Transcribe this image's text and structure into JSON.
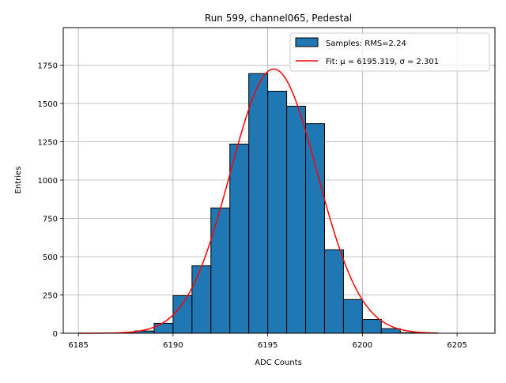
{
  "chart_data": {
    "type": "bar",
    "title": "Run 599, channel065, Pedestal",
    "xlabel": "ADC Counts",
    "ylabel": "Entries",
    "xlim": [
      6184.2,
      6207.0
    ],
    "ylim": [
      0,
      1995
    ],
    "grid": true,
    "legend_position": "top-right",
    "xticks": [
      6185,
      6190,
      6195,
      6200,
      6205
    ],
    "yticks": [
      0,
      250,
      500,
      750,
      1000,
      1250,
      1500,
      1750
    ],
    "histogram": {
      "name": "Samples: RMS=2.24",
      "color": "#1f77b4",
      "edgecolor": "#000000",
      "bins": [
        {
          "left": 6187,
          "right": 6188,
          "count": 2
        },
        {
          "left": 6188,
          "right": 6189,
          "count": 15
        },
        {
          "left": 6189,
          "right": 6190,
          "count": 65
        },
        {
          "left": 6190,
          "right": 6191,
          "count": 245
        },
        {
          "left": 6191,
          "right": 6192,
          "count": 440
        },
        {
          "left": 6192,
          "right": 6193,
          "count": 818
        },
        {
          "left": 6193,
          "right": 6194,
          "count": 1235
        },
        {
          "left": 6194,
          "right": 6195,
          "count": 1695
        },
        {
          "left": 6195,
          "right": 6196,
          "count": 1580
        },
        {
          "left": 6196,
          "right": 6197,
          "count": 1482
        },
        {
          "left": 6197,
          "right": 6198,
          "count": 1368
        },
        {
          "left": 6198,
          "right": 6199,
          "count": 545
        },
        {
          "left": 6199,
          "right": 6200,
          "count": 220
        },
        {
          "left": 6200,
          "right": 6201,
          "count": 90
        },
        {
          "left": 6201,
          "right": 6202,
          "count": 30
        },
        {
          "left": 6202,
          "right": 6203,
          "count": 4
        }
      ]
    },
    "fit": {
      "name": "Fit: μ = 6195.319, σ = 2.301",
      "color": "#ff0000",
      "mu": 6195.319,
      "sigma": 2.301,
      "amplitude": 1725,
      "x_range": [
        6185,
        6204
      ]
    }
  }
}
